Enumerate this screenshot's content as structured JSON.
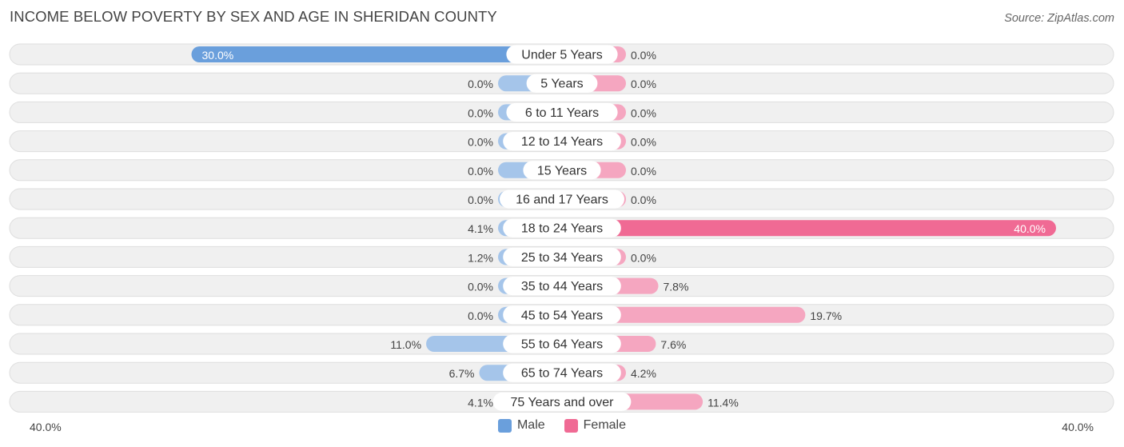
{
  "header": {
    "title": "INCOME BELOW POVERTY BY SEX AND AGE IN SHERIDAN COUNTY",
    "source": "Source: ZipAtlas.com"
  },
  "colors": {
    "male_strong": "#6a9fdc",
    "male_light": "#a5c5ea",
    "female_strong": "#f06a94",
    "female_light": "#f5a6c0",
    "row_bg": "#f0f0f0",
    "row_border": "#dedede"
  },
  "chart_data": {
    "type": "bar",
    "orientation": "horizontal-diverging",
    "title": "INCOME BELOW POVERTY BY SEX AND AGE IN SHERIDAN COUNTY",
    "categories": [
      "Under 5 Years",
      "5 Years",
      "6 to 11 Years",
      "12 to 14 Years",
      "15 Years",
      "16 and 17 Years",
      "18 to 24 Years",
      "25 to 34 Years",
      "35 to 44 Years",
      "45 to 54 Years",
      "55 to 64 Years",
      "65 to 74 Years",
      "75 Years and over"
    ],
    "series": [
      {
        "name": "Male",
        "values": [
          30.0,
          0.0,
          0.0,
          0.0,
          0.0,
          0.0,
          4.1,
          1.2,
          0.0,
          0.0,
          11.0,
          6.7,
          4.1
        ],
        "labels": [
          "30.0%",
          "0.0%",
          "0.0%",
          "0.0%",
          "0.0%",
          "0.0%",
          "4.1%",
          "1.2%",
          "0.0%",
          "0.0%",
          "11.0%",
          "6.7%",
          "4.1%"
        ]
      },
      {
        "name": "Female",
        "values": [
          0.0,
          0.0,
          0.0,
          0.0,
          0.0,
          0.0,
          40.0,
          0.0,
          7.8,
          19.7,
          7.6,
          4.2,
          11.4
        ],
        "labels": [
          "0.0%",
          "0.0%",
          "0.0%",
          "0.0%",
          "0.0%",
          "0.0%",
          "40.0%",
          "0.0%",
          "7.8%",
          "19.7%",
          "7.6%",
          "4.2%",
          "11.4%"
        ]
      }
    ],
    "xlim": [
      -40,
      40
    ],
    "axis_left_label": "40.0%",
    "axis_right_label": "40.0%",
    "legend": [
      "Male",
      "Female"
    ],
    "legend_position": "bottom-center"
  }
}
